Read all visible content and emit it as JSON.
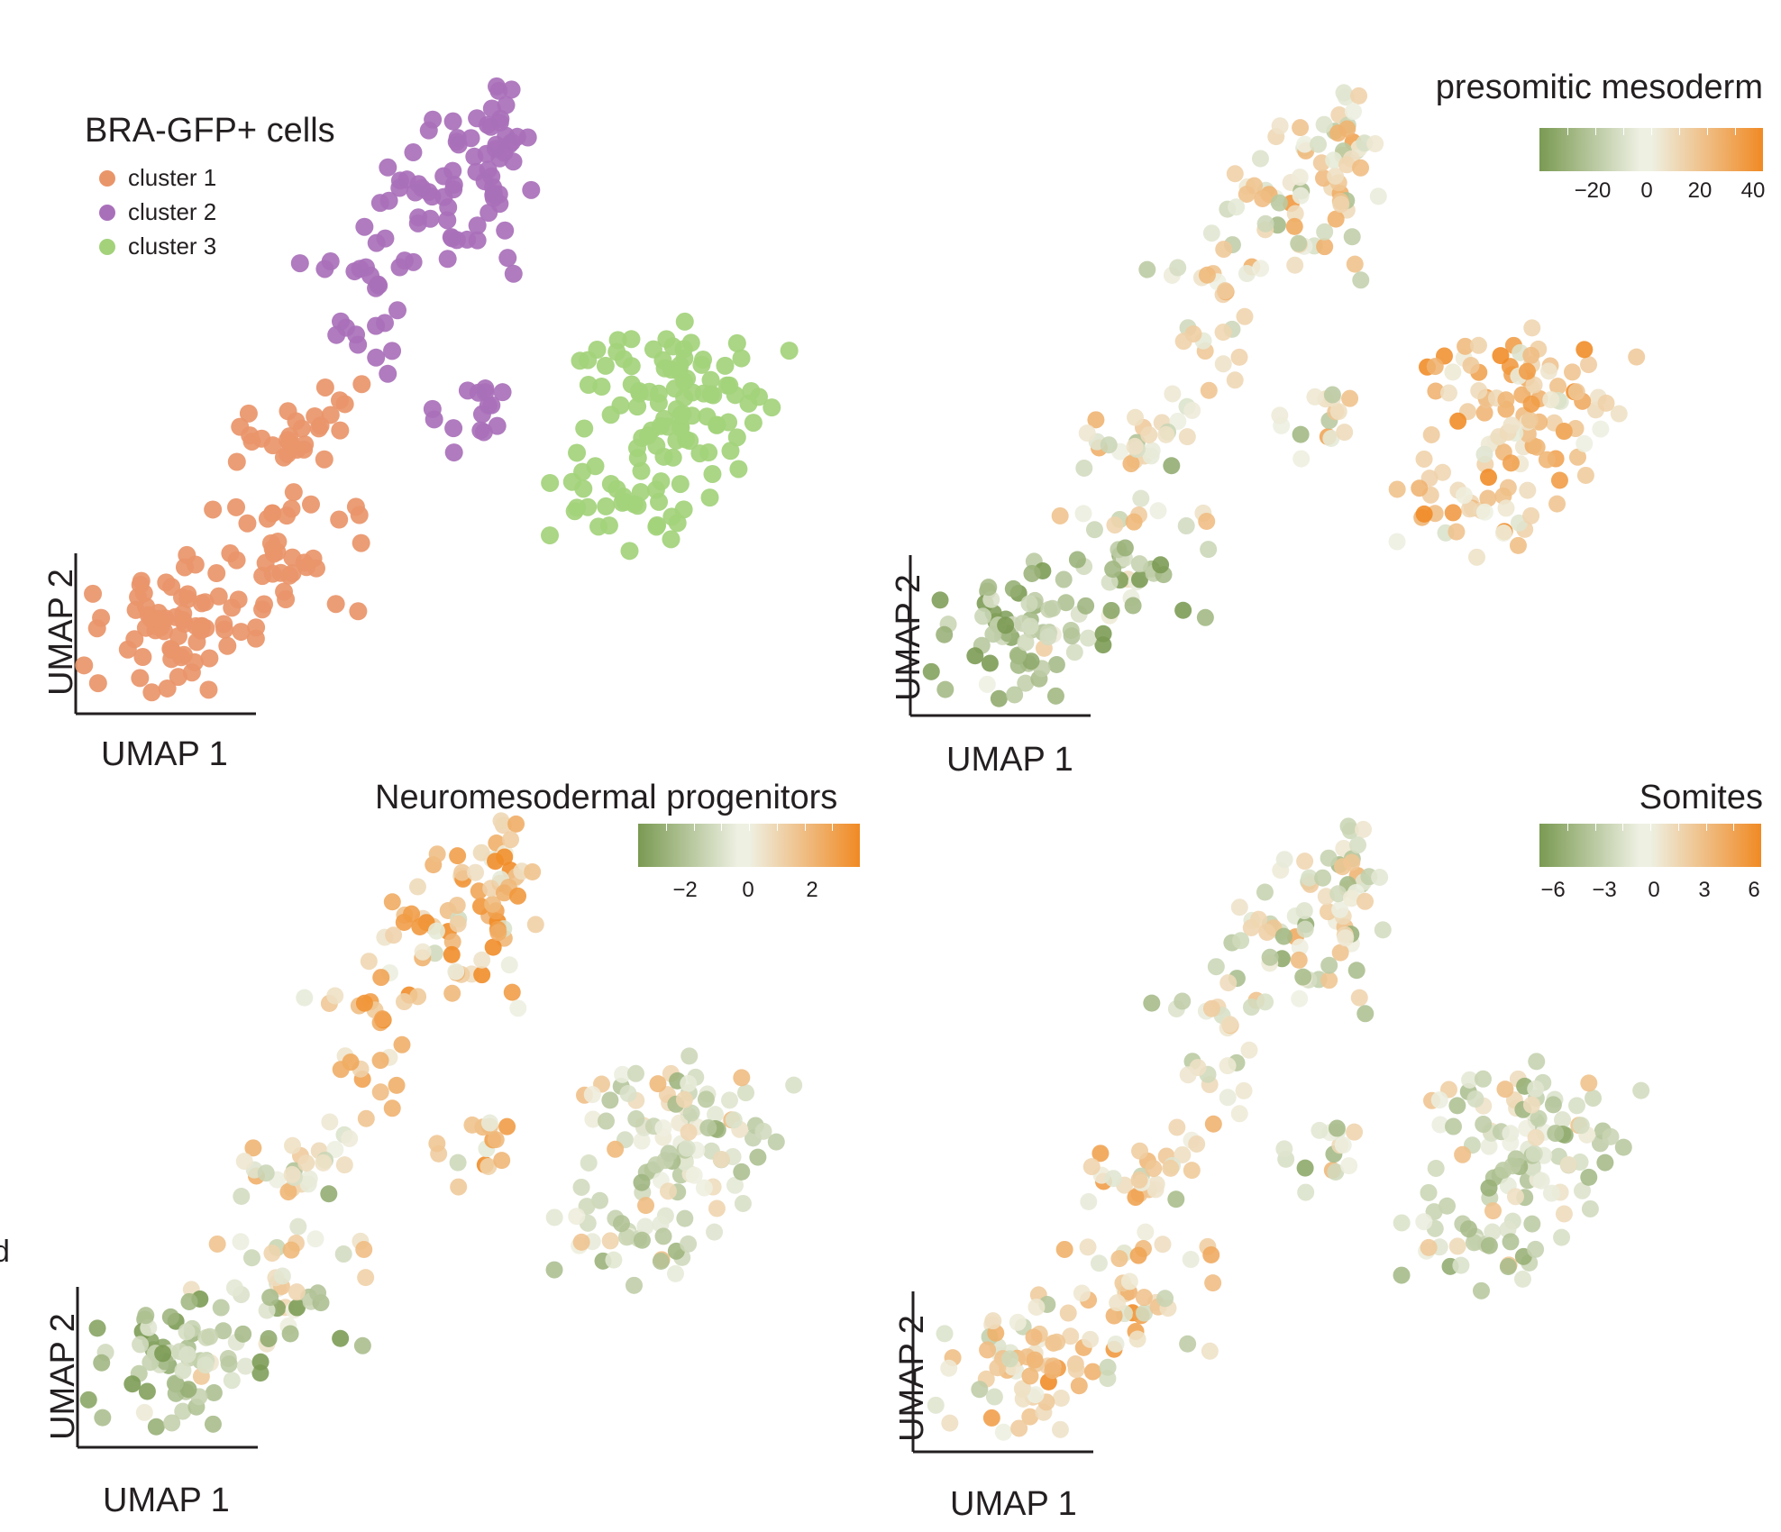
{
  "chart_data": [
    {
      "type": "scatter",
      "panel": "top-left",
      "title": "BRA-GFP+ cells",
      "xlabel": "UMAP 1",
      "ylabel": "UMAP 2",
      "legend": [
        "cluster 1",
        "cluster 2",
        "cluster 3"
      ],
      "legend_placement": "top-left",
      "colors": {
        "cluster 1": "#e9956a",
        "cluster 2": "#a970ba",
        "cluster 3": "#a3d27b"
      },
      "series": [
        {
          "name": "cluster 1",
          "region": {
            "x": [
              0.0,
              0.45
            ],
            "y": [
              0.0,
              0.55
            ]
          }
        },
        {
          "name": "cluster 2",
          "region": {
            "x": [
              0.35,
              0.72
            ],
            "y": [
              0.45,
              1.0
            ]
          }
        },
        {
          "name": "cluster 3",
          "region": {
            "x": [
              0.65,
              1.0
            ],
            "y": [
              0.3,
              0.75
            ]
          }
        }
      ]
    },
    {
      "type": "scatter",
      "panel": "top-right",
      "title": "presomitic mesoderm",
      "xlabel": "UMAP 1",
      "ylabel": "UMAP 2",
      "colorbar": {
        "ticks": [
          "−20",
          "0",
          "20",
          "40"
        ],
        "range": [
          -30,
          45
        ],
        "low_color": "#7a9a52",
        "mid_color": "#eef0e2",
        "high_color": "#f08a24"
      }
    },
    {
      "type": "scatter",
      "panel": "bottom-left",
      "title": "Neuromesodermal progenitors",
      "xlabel": "UMAP 1",
      "ylabel": "UMAP 2",
      "colorbar": {
        "ticks": [
          "−2",
          "0",
          "2"
        ],
        "range": [
          -3.5,
          3.5
        ],
        "low_color": "#7a9a52",
        "mid_color": "#eef0e2",
        "high_color": "#f08a24"
      }
    },
    {
      "type": "scatter",
      "panel": "bottom-right",
      "title": "Somites",
      "xlabel": "UMAP 1",
      "ylabel": "UMAP 2",
      "colorbar": {
        "ticks": [
          "−6",
          "−3",
          "0",
          "3",
          "6"
        ],
        "range": [
          -7,
          7
        ],
        "low_color": "#7a9a52",
        "mid_color": "#eef0e2",
        "high_color": "#f08a24"
      }
    }
  ],
  "stray_text": "d"
}
